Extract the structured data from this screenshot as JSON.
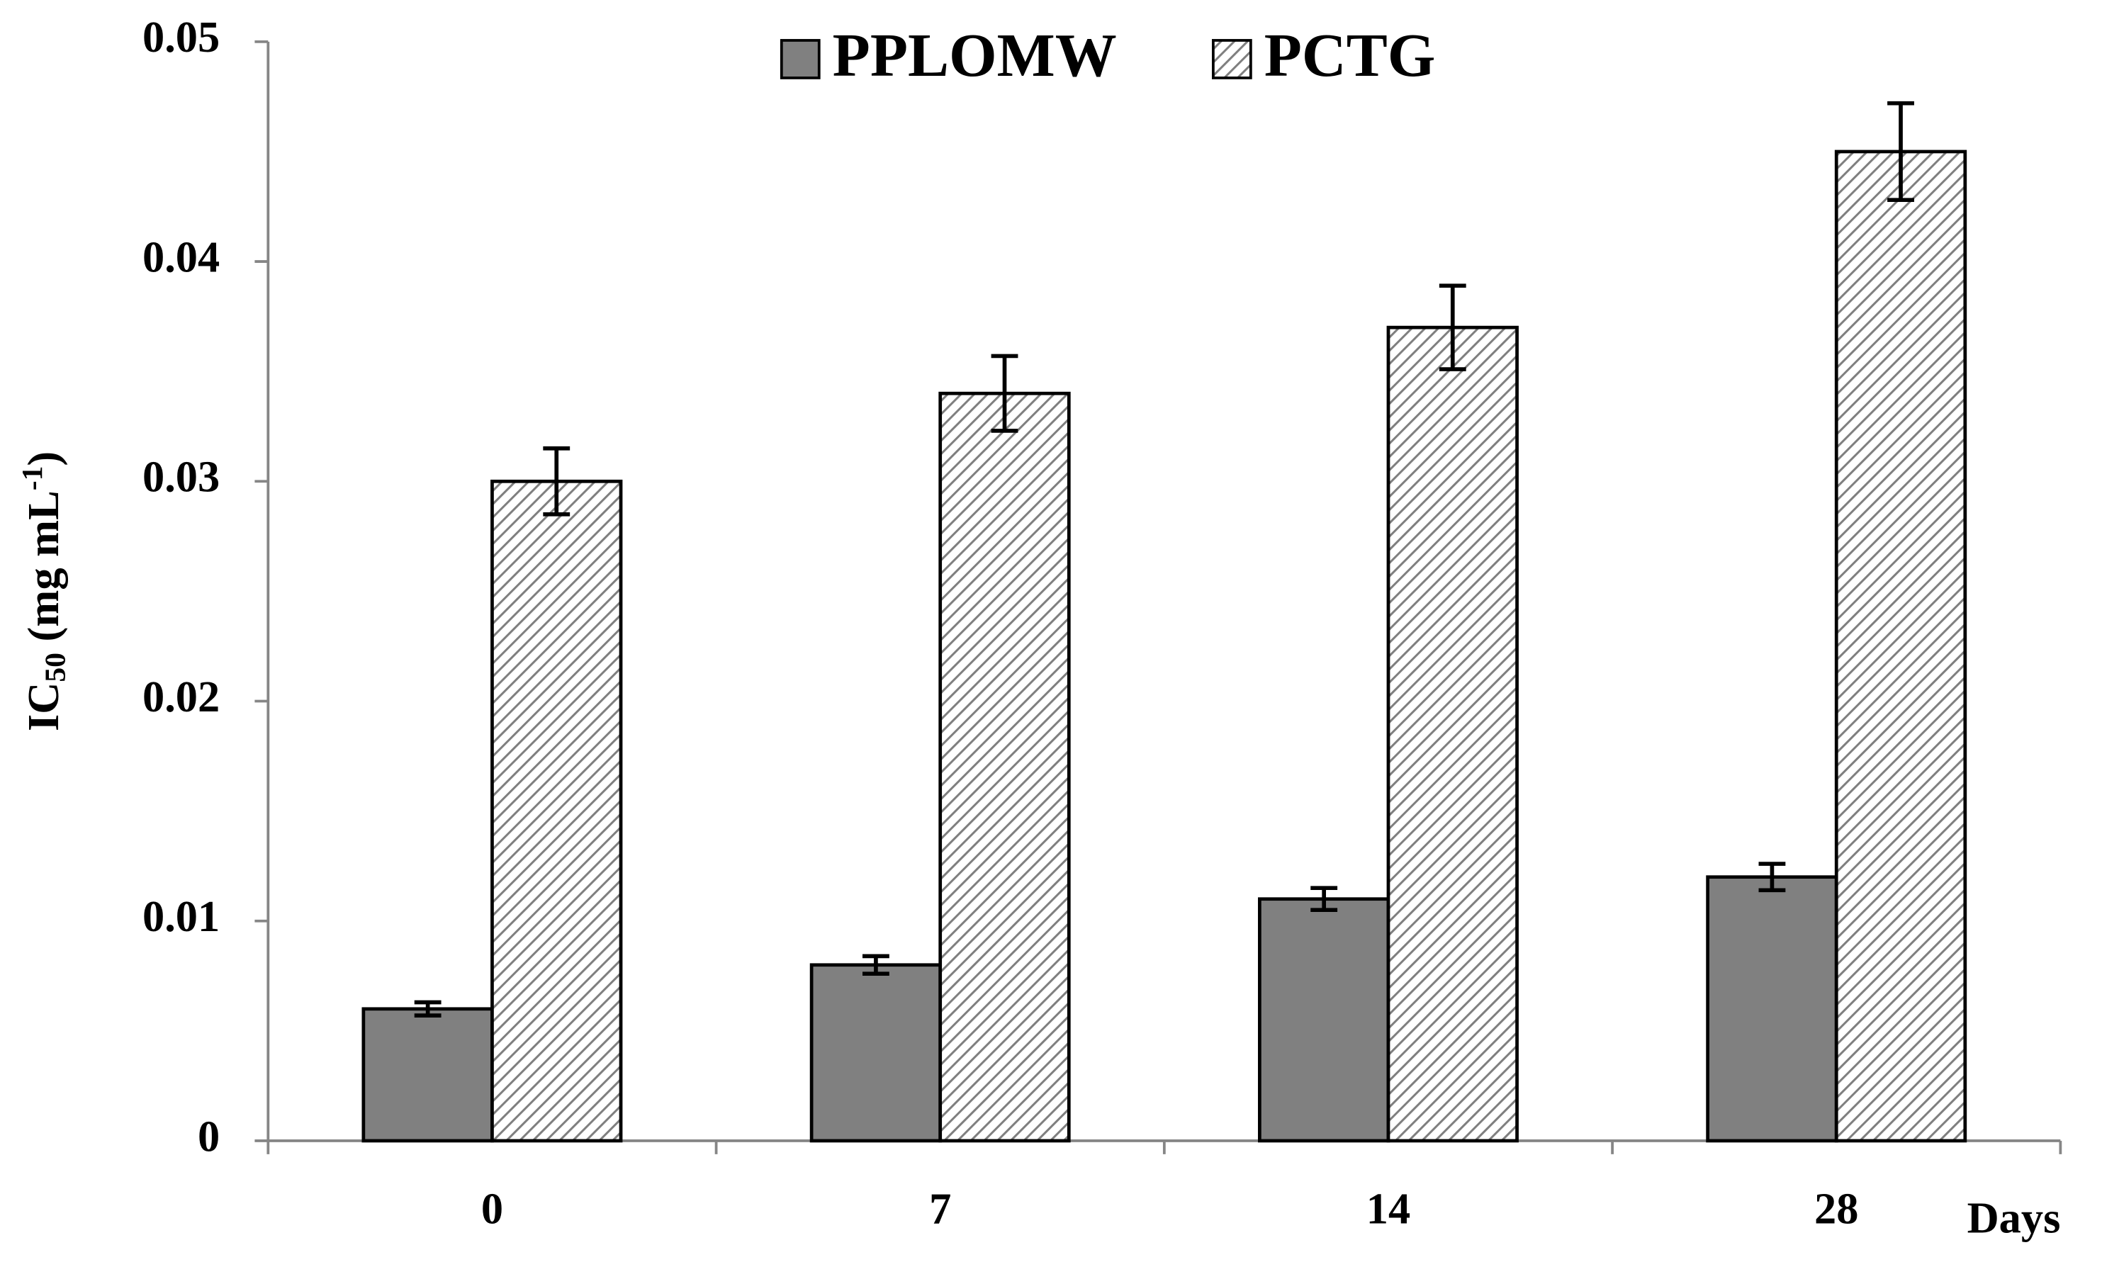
{
  "chart_data": {
    "type": "bar",
    "y_label": {
      "main": "IC",
      "sub": "50",
      "middle": " (mg mL",
      "sup": "-1",
      "end": ")"
    },
    "x_label": "Days",
    "categories": [
      "0",
      "7",
      "14",
      "28"
    ],
    "series": [
      {
        "name": "PPLOMW",
        "color": "#808080",
        "fill": "solid",
        "values": [
          0.006,
          0.008,
          0.011,
          0.012
        ],
        "errors": [
          0.0003,
          0.0004,
          0.0005,
          0.0006
        ]
      },
      {
        "name": "PCTG",
        "color": "#7f7f7f",
        "fill": "hatch",
        "values": [
          0.03,
          0.034,
          0.037,
          0.045
        ],
        "errors": [
          0.0015,
          0.0017,
          0.0019,
          0.0022
        ]
      }
    ],
    "ylim": [
      0,
      0.05
    ],
    "yticks": [
      0,
      0.01,
      0.02,
      0.03,
      0.04,
      0.05
    ],
    "grid": false,
    "legend": "top"
  }
}
